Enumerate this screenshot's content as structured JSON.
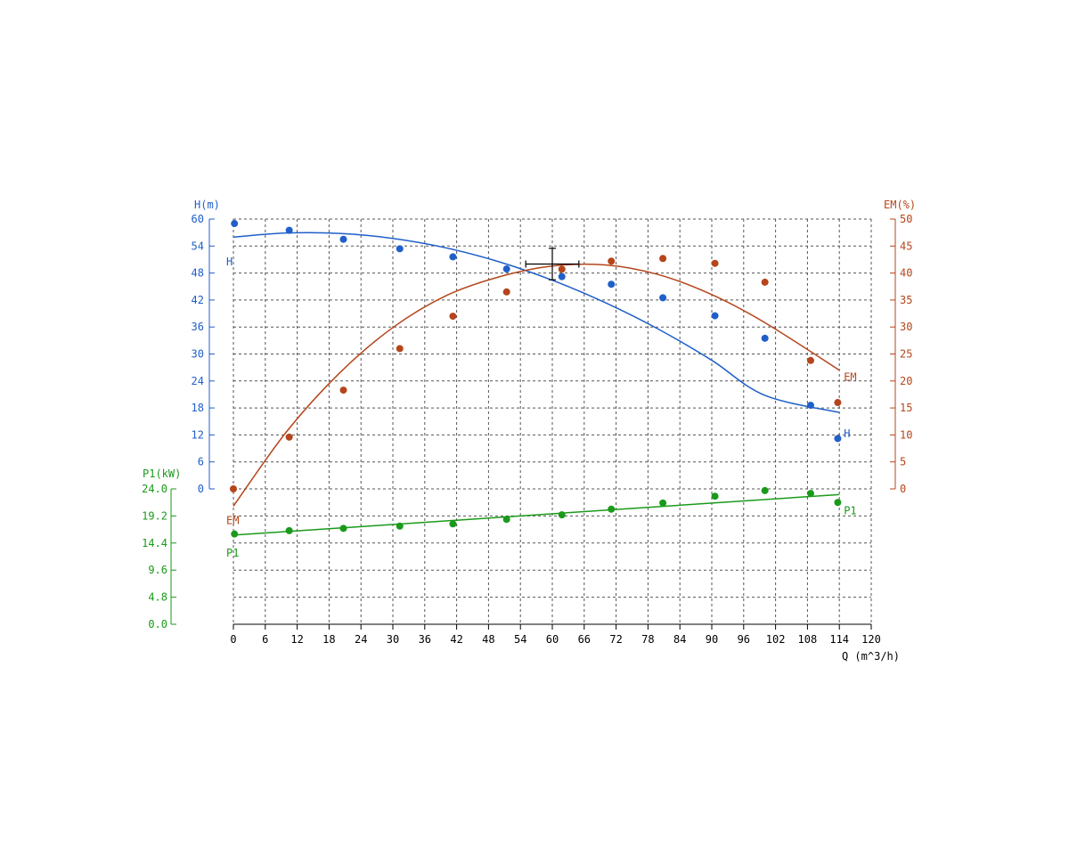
{
  "chart_data": {
    "type": "scatter",
    "x_axis": {
      "label": "Q (m^3/h)",
      "range": [
        0,
        120
      ],
      "ticks": [
        "0",
        "6",
        "12",
        "18",
        "24",
        "30",
        "36",
        "42",
        "48",
        "54",
        "60",
        "66",
        "72",
        "78",
        "84",
        "90",
        "96",
        "102",
        "108",
        "114",
        "120"
      ]
    },
    "y_axes": [
      {
        "id": "H",
        "label": "H(m)",
        "color": "#1f5fc9",
        "range": [
          0,
          60
        ],
        "ticks": [
          "0",
          "6",
          "12",
          "18",
          "24",
          "30",
          "36",
          "42",
          "48",
          "54",
          "60"
        ]
      },
      {
        "id": "EM",
        "label": "EM(%)",
        "color": "#b5451b",
        "range": [
          0,
          50
        ],
        "ticks": [
          "0",
          "5",
          "10",
          "15",
          "20",
          "25",
          "30",
          "35",
          "40",
          "45",
          "50"
        ]
      },
      {
        "id": "P1",
        "label": "P1(kW)",
        "color": "#1a9a1a",
        "range": [
          0,
          24
        ],
        "ticks": [
          "0.0",
          "4.8",
          "9.6",
          "14.4",
          "19.2",
          "24.0"
        ]
      }
    ],
    "series": [
      {
        "name": "H",
        "axis": "H",
        "color": "#1f5fc9",
        "points": [
          [
            0.2,
            59
          ],
          [
            10.5,
            57.5
          ],
          [
            20.7,
            55.5
          ],
          [
            31.3,
            53.4
          ],
          [
            41.3,
            51.6
          ],
          [
            51.4,
            48.9
          ],
          [
            61.8,
            47.2
          ],
          [
            71.1,
            45.5
          ],
          [
            80.8,
            42.5
          ],
          [
            90.6,
            38.5
          ],
          [
            100,
            33.5
          ],
          [
            108.6,
            18.6
          ],
          [
            113.7,
            11.2
          ]
        ],
        "curve": [
          [
            0,
            56
          ],
          [
            10,
            56.9
          ],
          [
            20,
            56.8
          ],
          [
            30,
            55.7
          ],
          [
            40,
            53.6
          ],
          [
            50,
            50.5
          ],
          [
            60,
            46.4
          ],
          [
            70,
            41.4
          ],
          [
            80,
            35.5
          ],
          [
            90,
            28.6
          ],
          [
            100,
            20.8
          ],
          [
            114,
            17
          ]
        ]
      },
      {
        "name": "EM",
        "axis": "EM",
        "color": "#b5451b",
        "points": [
          [
            0,
            0
          ],
          [
            10.5,
            9.6
          ],
          [
            20.7,
            18.3
          ],
          [
            31.3,
            26
          ],
          [
            41.3,
            32
          ],
          [
            51.4,
            36.5
          ],
          [
            61.8,
            40.7
          ],
          [
            71.1,
            42.2
          ],
          [
            80.8,
            42.7
          ],
          [
            90.6,
            41.8
          ],
          [
            100,
            38.3
          ],
          [
            108.6,
            23.8
          ],
          [
            113.7,
            16
          ]
        ],
        "curve": [
          [
            0,
            -3.2
          ],
          [
            10,
            10.6
          ],
          [
            20,
            21.5
          ],
          [
            30,
            29.9
          ],
          [
            40,
            35.8
          ],
          [
            50,
            39.3
          ],
          [
            60,
            41.3
          ],
          [
            70,
            41.5
          ],
          [
            80,
            39.7
          ],
          [
            90,
            36
          ],
          [
            100,
            30.8
          ],
          [
            114,
            22
          ]
        ]
      },
      {
        "name": "P1",
        "axis": "P1",
        "color": "#1a9a1a",
        "points": [
          [
            0.2,
            16
          ],
          [
            10.5,
            16.6
          ],
          [
            20.7,
            17
          ],
          [
            31.3,
            17.4
          ],
          [
            41.3,
            17.8
          ],
          [
            51.4,
            18.6
          ],
          [
            61.8,
            19.4
          ],
          [
            71.1,
            20.4
          ],
          [
            80.8,
            21.5
          ],
          [
            90.6,
            22.7
          ],
          [
            100,
            23.7
          ],
          [
            108.6,
            23.2
          ],
          [
            113.7,
            21.6
          ]
        ],
        "curve": [
          [
            0,
            15.8
          ],
          [
            114,
            23
          ]
        ]
      }
    ],
    "operating_point": {
      "x": 60,
      "y": 50,
      "x_err": [
        55,
        65
      ],
      "y_err": [
        46.5,
        53.5
      ]
    },
    "grid": true
  }
}
